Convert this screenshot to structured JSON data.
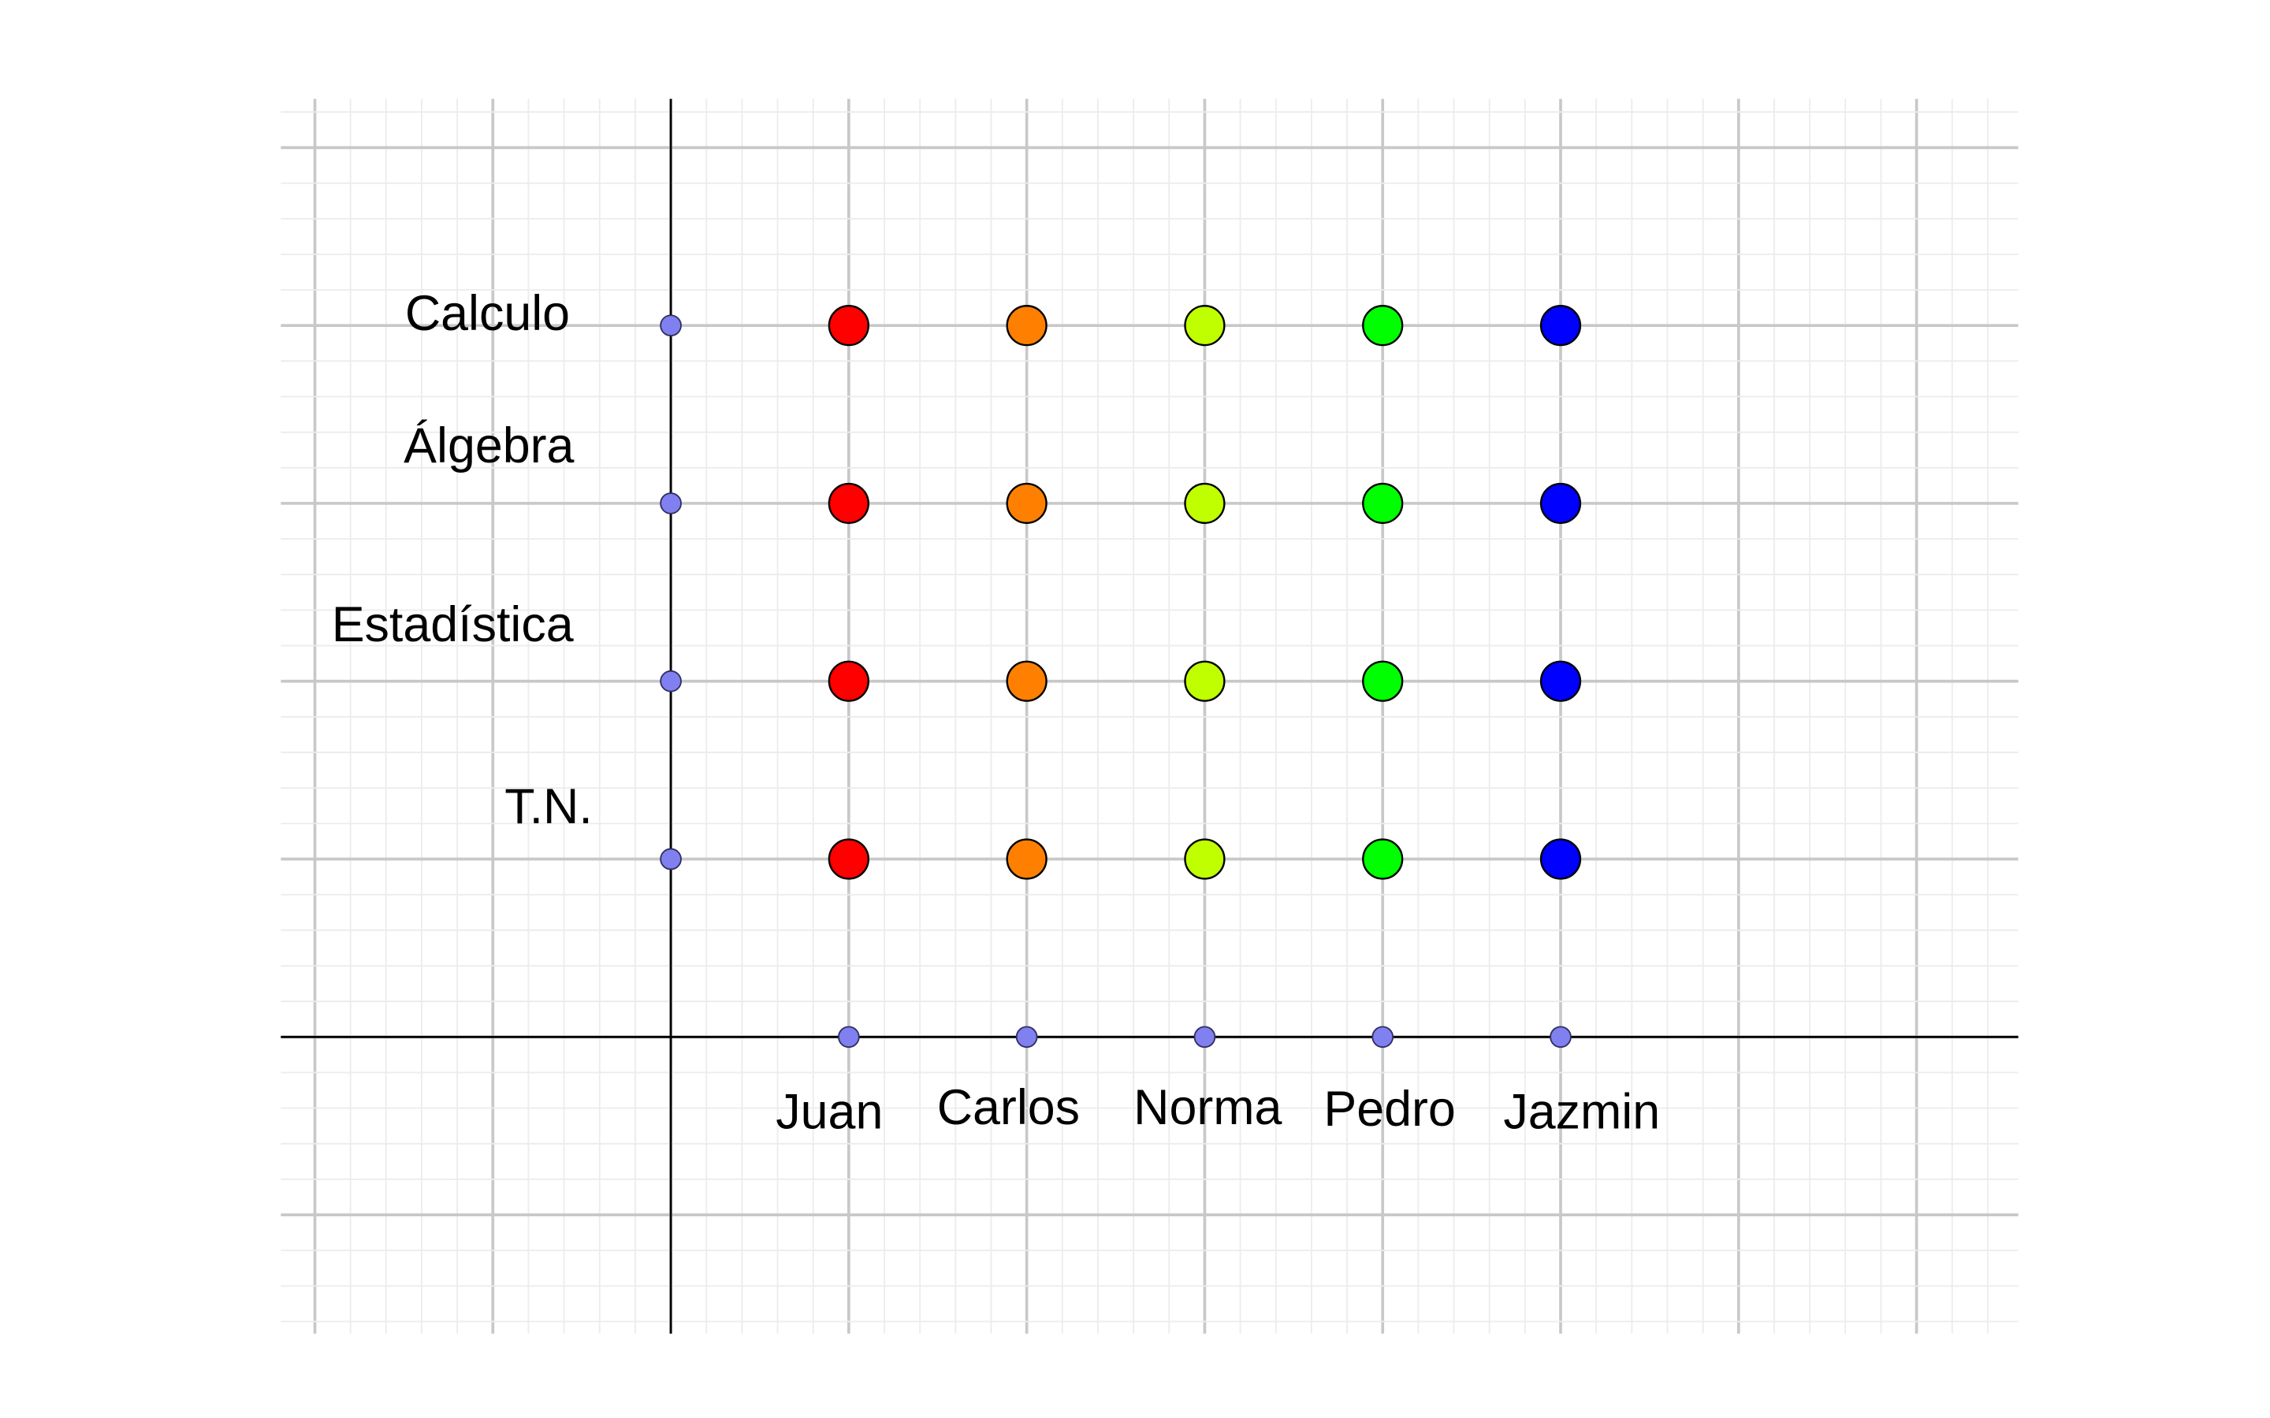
{
  "rows": [
    "Calculo",
    "Álgebra",
    "Estadística",
    "T.N."
  ],
  "columns": [
    {
      "name": "Juan",
      "color": "#ff0000"
    },
    {
      "name": "Carlos",
      "color": "#ff8000"
    },
    {
      "name": "Norma",
      "color": "#c0ff00"
    },
    {
      "name": "Pedro",
      "color": "#00ff00"
    },
    {
      "name": "Jazmin",
      "color": "#0000ff"
    }
  ],
  "point_color": "#8080f0"
}
